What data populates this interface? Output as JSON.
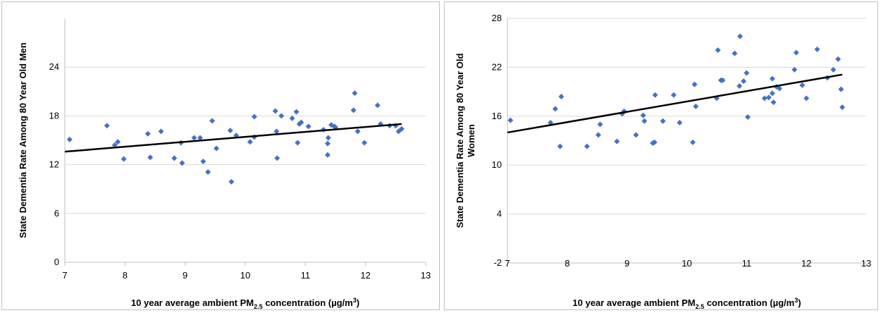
{
  "chart_data": [
    {
      "type": "scatter",
      "xlabel_parts": [
        "10 year average ambient PM",
        "2.5",
        " concentration (µg/m",
        "3",
        ")"
      ],
      "ylabel_lines": [
        "State Dementia Rate Among 80 Year Old Men"
      ],
      "xlim": [
        7,
        13
      ],
      "ylim": [
        0,
        30
      ],
      "xticks": [
        7,
        8,
        9,
        10,
        11,
        12,
        13
      ],
      "yticks": [
        0,
        6,
        12,
        18,
        24
      ],
      "grid": true,
      "marker_color": "#4472c4",
      "trendline": [
        [
          7,
          13.6
        ],
        [
          12.6,
          17.0
        ]
      ],
      "points": [
        [
          7.08,
          15.1
        ],
        [
          7.7,
          16.8
        ],
        [
          7.83,
          14.4
        ],
        [
          7.88,
          14.8
        ],
        [
          7.98,
          12.7
        ],
        [
          8.38,
          15.8
        ],
        [
          8.42,
          12.9
        ],
        [
          8.6,
          16.1
        ],
        [
          8.82,
          12.8
        ],
        [
          8.93,
          14.7
        ],
        [
          8.95,
          12.2
        ],
        [
          9.15,
          15.3
        ],
        [
          9.25,
          15.3
        ],
        [
          9.3,
          12.4
        ],
        [
          9.38,
          11.1
        ],
        [
          9.45,
          17.4
        ],
        [
          9.52,
          14.0
        ],
        [
          9.75,
          16.2
        ],
        [
          9.77,
          9.9
        ],
        [
          9.85,
          15.6
        ],
        [
          10.08,
          14.8
        ],
        [
          10.15,
          15.4
        ],
        [
          10.15,
          17.9
        ],
        [
          10.5,
          18.6
        ],
        [
          10.52,
          16.1
        ],
        [
          10.53,
          12.8
        ],
        [
          10.6,
          18.0
        ],
        [
          10.78,
          17.7
        ],
        [
          10.85,
          18.5
        ],
        [
          10.87,
          14.7
        ],
        [
          10.9,
          17.0
        ],
        [
          10.93,
          17.2
        ],
        [
          11.05,
          16.7
        ],
        [
          11.3,
          16.3
        ],
        [
          11.37,
          13.2
        ],
        [
          11.37,
          14.6
        ],
        [
          11.38,
          15.3
        ],
        [
          11.43,
          16.9
        ],
        [
          11.48,
          16.7
        ],
        [
          11.5,
          16.6
        ],
        [
          11.8,
          18.7
        ],
        [
          11.82,
          20.8
        ],
        [
          11.87,
          16.1
        ],
        [
          11.98,
          14.7
        ],
        [
          12.2,
          19.3
        ],
        [
          12.25,
          17.0
        ],
        [
          12.4,
          16.8
        ],
        [
          12.5,
          16.8
        ],
        [
          12.55,
          16.1
        ],
        [
          12.6,
          16.4
        ]
      ]
    },
    {
      "type": "scatter",
      "xlabel_parts": [
        "10 year average ambient PM",
        "2.5",
        " concentration  (µg/m",
        "3",
        ")"
      ],
      "ylabel_lines": [
        "State Dementia Rate Among 80 Year Old",
        "Women"
      ],
      "xlim": [
        7,
        13
      ],
      "ylim": [
        -2,
        28
      ],
      "xticks": [
        7,
        8,
        9,
        10,
        11,
        12,
        13
      ],
      "yticks": [
        -2,
        4,
        10,
        16,
        22,
        28
      ],
      "grid": true,
      "marker_color": "#4472c4",
      "trendline": [
        [
          7,
          14.0
        ],
        [
          12.6,
          21.1
        ]
      ],
      "points": [
        [
          7.05,
          15.5
        ],
        [
          7.72,
          15.2
        ],
        [
          7.8,
          16.9
        ],
        [
          7.88,
          12.3
        ],
        [
          7.9,
          18.4
        ],
        [
          8.33,
          12.3
        ],
        [
          8.52,
          13.7
        ],
        [
          8.55,
          15.0
        ],
        [
          8.83,
          12.9
        ],
        [
          8.92,
          16.3
        ],
        [
          8.95,
          16.6
        ],
        [
          9.15,
          13.7
        ],
        [
          9.27,
          16.1
        ],
        [
          9.29,
          15.4
        ],
        [
          9.43,
          12.7
        ],
        [
          9.46,
          12.8
        ],
        [
          9.47,
          18.6
        ],
        [
          9.6,
          15.4
        ],
        [
          9.78,
          18.6
        ],
        [
          9.88,
          15.2
        ],
        [
          10.1,
          12.8
        ],
        [
          10.13,
          19.9
        ],
        [
          10.15,
          17.2
        ],
        [
          10.5,
          18.2
        ],
        [
          10.52,
          24.1
        ],
        [
          10.57,
          20.4
        ],
        [
          10.6,
          20.4
        ],
        [
          10.8,
          23.7
        ],
        [
          10.88,
          19.7
        ],
        [
          10.89,
          25.8
        ],
        [
          10.95,
          20.3
        ],
        [
          11.0,
          21.3
        ],
        [
          11.02,
          15.9
        ],
        [
          11.3,
          18.2
        ],
        [
          11.37,
          18.3
        ],
        [
          11.43,
          18.8
        ],
        [
          11.43,
          20.6
        ],
        [
          11.45,
          17.7
        ],
        [
          11.5,
          19.6
        ],
        [
          11.55,
          19.4
        ],
        [
          11.8,
          21.7
        ],
        [
          11.83,
          23.8
        ],
        [
          11.93,
          19.8
        ],
        [
          12.0,
          18.2
        ],
        [
          12.18,
          24.2
        ],
        [
          12.35,
          20.7
        ],
        [
          12.45,
          21.7
        ],
        [
          12.53,
          23.0
        ],
        [
          12.58,
          19.3
        ],
        [
          12.6,
          17.1
        ]
      ]
    }
  ]
}
